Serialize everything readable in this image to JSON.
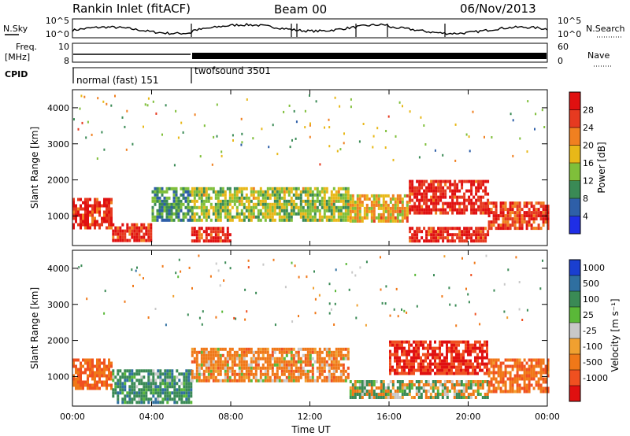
{
  "header": {
    "station": "Rankin Inlet (fitACF)",
    "beam": "Beam 00",
    "date": "06/Nov/2013"
  },
  "top_panels": {
    "nsky_label": "N.Sky",
    "nsearch_label": "N.Search",
    "nsky_ticks": [
      "10^5",
      "10^0"
    ],
    "nsearch_ticks": [
      "10^5",
      "10^0"
    ],
    "freq_label_line1": "Freq.",
    "freq_label_line2": "[MHz]",
    "freq_ticks": [
      "10",
      "8"
    ],
    "nave_label": "Nave",
    "nave_ticks": [
      "60",
      "0"
    ],
    "cpid_label": "CPID",
    "cpid_modes": [
      "normal (fast) 151",
      "twofsound 3501"
    ]
  },
  "x_axis": {
    "label": "Time UT",
    "ticks": [
      "00:00",
      "04:00",
      "08:00",
      "12:00",
      "16:00",
      "20:00",
      "00:00"
    ]
  },
  "power_panel": {
    "ylabel": "Slant Range [km]",
    "y_ticks": [
      "1000",
      "2000",
      "3000",
      "4000"
    ],
    "colorbar_label": "Power [dB]",
    "colorbar_ticks": [
      "4",
      "8",
      "12",
      "16",
      "20",
      "24",
      "28"
    ],
    "colors": [
      "#1f2ee6",
      "#2e5fa8",
      "#3a8a55",
      "#7fbf3a",
      "#e8b818",
      "#f08020",
      "#e63a20",
      "#e01010"
    ]
  },
  "velocity_panel": {
    "ylabel": "Slant Range [km]",
    "y_ticks": [
      "1000",
      "2000",
      "3000",
      "4000"
    ],
    "colorbar_label": "Velocity [m s⁻¹]",
    "colorbar_ticks": [
      "1000",
      "500",
      "100",
      "25",
      "-25",
      "-100",
      "-500",
      "-1000"
    ],
    "colors": [
      "#1a3fd0",
      "#2f6fa0",
      "#3a8a55",
      "#5ab838",
      "#c8c8c8",
      "#f0a030",
      "#f07818",
      "#f05020",
      "#e01010"
    ]
  },
  "chart_data": [
    {
      "type": "heatmap",
      "title": "Power",
      "xlabel": "Time UT",
      "ylabel": "Slant Range [km]",
      "xlim": [
        0,
        24
      ],
      "ylim": [
        180,
        4500
      ],
      "colorbar": {
        "label": "Power [dB]",
        "range": [
          0,
          30
        ]
      },
      "description_bands": [
        {
          "t_start": 0.0,
          "t_end": 2.0,
          "range_low": 700,
          "range_high": 1500,
          "power_db": 26
        },
        {
          "t_start": 2.0,
          "t_end": 4.0,
          "range_low": 300,
          "range_high": 800,
          "power_db": 26
        },
        {
          "t_start": 4.0,
          "t_end": 6.0,
          "range_low": 900,
          "range_high": 1800,
          "power_db": 10
        },
        {
          "t_start": 6.0,
          "t_end": 8.0,
          "range_low": 300,
          "range_high": 700,
          "power_db": 26
        },
        {
          "t_start": 6.0,
          "t_end": 14.0,
          "range_low": 900,
          "range_high": 1800,
          "power_db": 14
        },
        {
          "t_start": 14.0,
          "t_end": 17.0,
          "range_low": 900,
          "range_high": 1600,
          "power_db": 18
        },
        {
          "t_start": 17.0,
          "t_end": 21.0,
          "range_low": 1100,
          "range_high": 2000,
          "power_db": 27
        },
        {
          "t_start": 17.0,
          "t_end": 21.0,
          "range_low": 300,
          "range_high": 700,
          "power_db": 26
        },
        {
          "t_start": 21.0,
          "t_end": 24.0,
          "range_low": 700,
          "range_high": 1400,
          "power_db": 25
        }
      ]
    },
    {
      "type": "heatmap",
      "title": "Velocity",
      "xlabel": "Time UT",
      "ylabel": "Slant Range [km]",
      "xlim": [
        0,
        24
      ],
      "ylim": [
        180,
        4500
      ],
      "colorbar": {
        "label": "Velocity [m s-1]",
        "range": [
          -1000,
          1000
        ]
      },
      "description_bands": [
        {
          "t_start": 0.0,
          "t_end": 2.0,
          "range_low": 700,
          "range_high": 1500,
          "velocity": -300
        },
        {
          "t_start": 2.0,
          "t_end": 6.0,
          "range_low": 300,
          "range_high": 1200,
          "velocity": 200
        },
        {
          "t_start": 6.0,
          "t_end": 14.0,
          "range_low": 900,
          "range_high": 1800,
          "velocity": -150
        },
        {
          "t_start": 14.0,
          "t_end": 21.0,
          "range_low": 400,
          "range_high": 900,
          "velocity": 0
        },
        {
          "t_start": 16.0,
          "t_end": 21.0,
          "range_low": 1100,
          "range_high": 2000,
          "velocity": -700
        },
        {
          "t_start": 21.0,
          "t_end": 24.0,
          "range_low": 600,
          "range_high": 1500,
          "velocity": -250
        }
      ]
    }
  ]
}
